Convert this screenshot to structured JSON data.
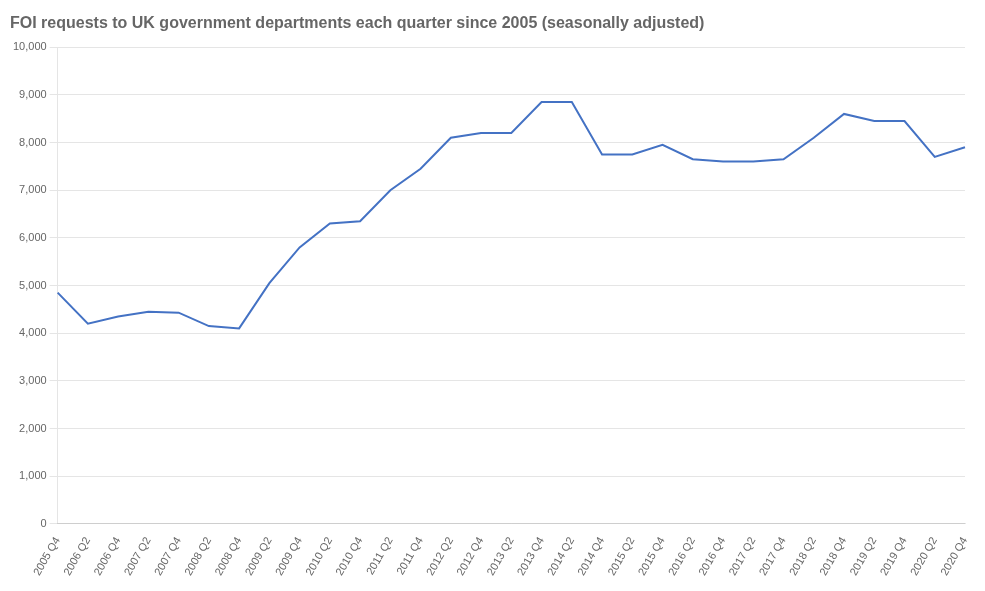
{
  "chart_data": {
    "type": "line",
    "title": "FOI requests to UK government departments each quarter since 2005 (seasonally adjusted)",
    "categories": [
      "2005 Q4",
      "2006 Q2",
      "2006 Q4",
      "2007 Q2",
      "2007 Q4",
      "2008 Q2",
      "2008 Q4",
      "2009 Q2",
      "2009 Q4",
      "2010 Q2",
      "2010 Q4",
      "2011 Q2",
      "2011 Q4",
      "2012 Q2",
      "2012 Q4",
      "2013 Q2",
      "2013 Q4",
      "2014 Q2",
      "2014 Q4",
      "2015 Q2",
      "2015 Q4",
      "2016 Q2",
      "2016 Q4",
      "2017 Q2",
      "2017 Q4",
      "2018 Q2",
      "2018 Q4",
      "2019 Q2",
      "2019 Q4",
      "2020 Q2",
      "2020 Q4"
    ],
    "values": [
      4850,
      4200,
      4350,
      4450,
      4430,
      4150,
      4100,
      5050,
      5800,
      6300,
      6350,
      7000,
      7450,
      8100,
      8200,
      8200,
      8850,
      8850,
      7750,
      7750,
      7950,
      7650,
      7600,
      7600,
      7650,
      8100,
      8600,
      8450,
      8450,
      7700,
      7900
    ],
    "color": "#4472C4",
    "ylim": [
      0,
      10000
    ],
    "yticks": [
      0,
      {
        "value": 1000,
        "label": "1,000"
      },
      {
        "value": 2000,
        "label": "2,000"
      },
      {
        "value": 3000,
        "label": "3,000"
      },
      {
        "value": 4000,
        "label": "4,000"
      },
      {
        "value": 5000,
        "label": "5,000"
      },
      {
        "value": 6000,
        "label": "6,000"
      },
      {
        "value": 7000,
        "label": "7,000"
      },
      {
        "value": 8000,
        "label": "8,000"
      },
      {
        "value": 9000,
        "label": "9,000"
      },
      {
        "value": 10000,
        "label": "10,000"
      }
    ],
    "grid": true
  }
}
